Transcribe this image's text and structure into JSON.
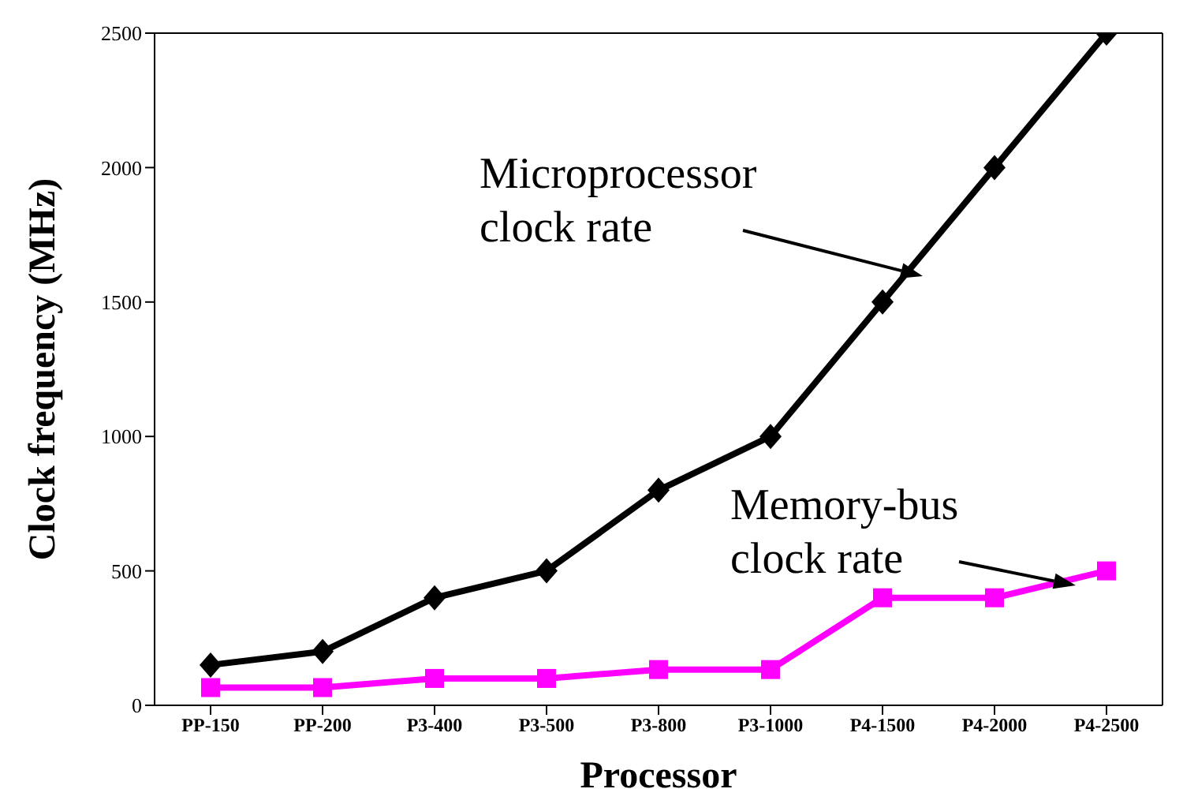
{
  "chart_data": {
    "type": "line",
    "xlabel": "Processor",
    "ylabel": "Clock frequency (MHz)",
    "categories": [
      "PP-150",
      "PP-200",
      "P3-400",
      "P3-500",
      "P3-800",
      "P3-1000",
      "P4-1500",
      "P4-2000",
      "P4-2500"
    ],
    "series": [
      {
        "name": "Microprocessor\nclock rate",
        "color": "#000000",
        "marker": "diamond",
        "values": [
          150,
          200,
          400,
          500,
          800,
          1000,
          1500,
          2000,
          2500
        ]
      },
      {
        "name": "Memory-bus\nclock rate",
        "color": "#ff00ff",
        "marker": "square",
        "values": [
          66,
          66,
          100,
          100,
          133,
          133,
          400,
          400,
          500
        ]
      }
    ],
    "ylim": [
      0,
      2500
    ],
    "yticks": [
      0,
      500,
      1000,
      1500,
      2000,
      2500
    ],
    "grid": false,
    "legend": false
  }
}
